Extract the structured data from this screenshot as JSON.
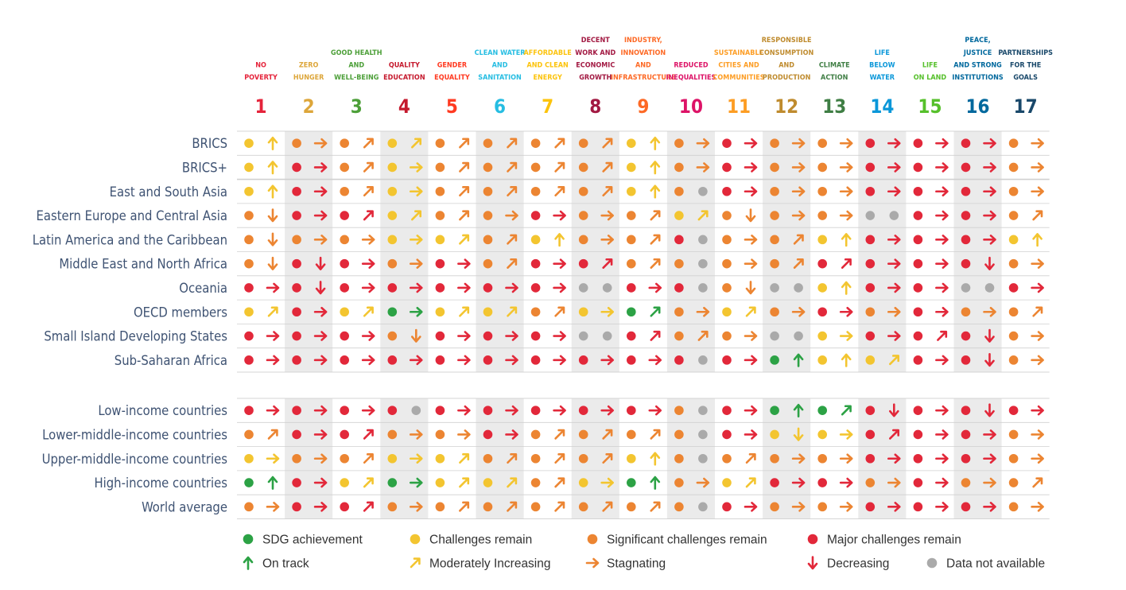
{
  "goals": [
    {
      "number": "1",
      "title": [
        "NO",
        "POVERTY"
      ],
      "color": "#e5243b"
    },
    {
      "number": "2",
      "title": [
        "ZERO",
        "HUNGER"
      ],
      "color": "#dda63a"
    },
    {
      "number": "3",
      "title": [
        "GOOD HEALTH",
        "AND",
        "WELL-BEING"
      ],
      "color": "#4c9f38"
    },
    {
      "number": "4",
      "title": [
        "QUALITY",
        "EDUCATION"
      ],
      "color": "#c5192d"
    },
    {
      "number": "5",
      "title": [
        "GENDER",
        "EQUALITY"
      ],
      "color": "#ff3a21"
    },
    {
      "number": "6",
      "title": [
        "CLEAN WATER",
        "AND",
        "SANITATION"
      ],
      "color": "#26bde2"
    },
    {
      "number": "7",
      "title": [
        "AFFORDABLE",
        "AND CLEAN",
        "ENERGY"
      ],
      "color": "#fcc30b"
    },
    {
      "number": "8",
      "title": [
        "DECENT",
        "WORK AND",
        "ECONOMIC",
        "GROWTH"
      ],
      "color": "#a21942"
    },
    {
      "number": "9",
      "title": [
        "INDUSTRY,",
        "INNOVATION",
        "AND",
        "INFRASTRUCTURE"
      ],
      "color": "#fd6925"
    },
    {
      "number": "10",
      "title": [
        "REDUCED",
        "INEQUALITIES"
      ],
      "color": "#dd1367"
    },
    {
      "number": "11",
      "title": [
        "SUSTAINABLE",
        "CITIES AND",
        "COMMUNITIES"
      ],
      "color": "#fd9d24"
    },
    {
      "number": "12",
      "title": [
        "RESPONSIBLE",
        "CONSUMPTION",
        "AND",
        "PRODUCTION"
      ],
      "color": "#bf8b2e"
    },
    {
      "number": "13",
      "title": [
        "CLIMATE",
        "ACTION"
      ],
      "color": "#3f7e44"
    },
    {
      "number": "14",
      "title": [
        "LIFE",
        "BELOW",
        "WATER"
      ],
      "color": "#0a97d9"
    },
    {
      "number": "15",
      "title": [
        "LIFE",
        "ON LAND"
      ],
      "color": "#56c02b"
    },
    {
      "number": "16",
      "title": [
        "PEACE,",
        "JUSTICE",
        "AND STRONG",
        "INSTITUTIONS"
      ],
      "color": "#00689d"
    },
    {
      "number": "17",
      "title": [
        "PARTNERSHIPS",
        "FOR THE",
        "GOALS"
      ],
      "color": "#19486a"
    }
  ],
  "colors": {
    "G": "#2ca245",
    "Y": "#f3c530",
    "O": "#ec8532",
    "R": "#e2283a",
    "N": "#aaaaaa",
    "row_label": "#3f5373",
    "band": "#ebebeb",
    "rule": "#d0d0d0"
  },
  "chart_data": {
    "type": "table",
    "codes": {
      "dot": {
        "G": "SDG achievement",
        "Y": "Challenges remain",
        "O": "Significant challenges remain",
        "R": "Major challenges remain",
        "N": "Data not available"
      },
      "trend": {
        "u": "On track",
        "m": "Moderately Increasing",
        "s": "Stagnating",
        "d": "Decreasing",
        "n": "Data not available"
      }
    },
    "groups": [
      {
        "rows": [
          {
            "label": "BRICS",
            "cells": [
              "Yu",
              "Os",
              "Om",
              "Ym",
              "Om",
              "Om",
              "Om",
              "Om",
              "Yu",
              "Os",
              "Rs",
              "Os",
              "Os",
              "Rs",
              "Rs",
              "Rs",
              "Os"
            ]
          },
          {
            "label": "BRICS+",
            "cells": [
              "Yu",
              "Rs",
              "Om",
              "Ys",
              "Om",
              "Om",
              "Om",
              "Om",
              "Yu",
              "Os",
              "Rs",
              "Os",
              "Os",
              "Rs",
              "Rs",
              "Rs",
              "Os"
            ]
          },
          {
            "label": "East and South Asia",
            "cells": [
              "Yu",
              "Rs",
              "Om",
              "Ys",
              "Om",
              "Om",
              "Om",
              "Om",
              "Yu",
              "ON",
              "Rs",
              "Os",
              "Os",
              "Rs",
              "Rs",
              "Rs",
              "Os"
            ]
          },
          {
            "label": "Eastern Europe and Central Asia",
            "cells": [
              "Od",
              "Rs",
              "Rm",
              "Ym",
              "Om",
              "Os",
              "Rs",
              "Os",
              "Om",
              "Ym",
              "Od",
              "Os",
              "Os",
              "NN",
              "Rs",
              "Rs",
              "Om"
            ]
          },
          {
            "label": "Latin America and the Caribbean",
            "cells": [
              "Od",
              "Os",
              "Os",
              "Ys",
              "Ym",
              "Om",
              "Yu",
              "Os",
              "Om",
              "RN",
              "Os",
              "Om",
              "Yu",
              "Rs",
              "Rs",
              "Rs",
              "Yu"
            ]
          },
          {
            "label": "Middle East and North Africa",
            "cells": [
              "Od",
              "Rd",
              "Rs",
              "Os",
              "Rs",
              "Om",
              "Rs",
              "Rm",
              "Om",
              "ON",
              "Os",
              "Om",
              "Rm",
              "Rs",
              "Rs",
              "Rd",
              "Os"
            ]
          },
          {
            "label": "Oceania",
            "cells": [
              "Rs",
              "Rd",
              "Rs",
              "Rs",
              "Rs",
              "Rs",
              "Rs",
              "NN",
              "Rs",
              "RN",
              "Od",
              "NN",
              "Yu",
              "Rs",
              "Rs",
              "NN",
              "Rs"
            ]
          },
          {
            "label": "OECD members",
            "cells": [
              "Ym",
              "Rs",
              "Ym",
              "Gs",
              "Ym",
              "Ym",
              "Om",
              "Ys",
              "Gm",
              "Os",
              "Ym",
              "Os",
              "Rs",
              "Os",
              "Rs",
              "Os",
              "Om"
            ]
          },
          {
            "label": "Small Island Developing States",
            "cells": [
              "Rs",
              "Rs",
              "Rs",
              "Od",
              "Rs",
              "Rs",
              "Rs",
              "NN",
              "Rm",
              "Om",
              "Os",
              "NN",
              "Ys",
              "Rs",
              "Rm",
              "Rd",
              "Os"
            ]
          },
          {
            "label": "Sub-Saharan Africa",
            "cells": [
              "Rs",
              "Rs",
              "Rs",
              "Rs",
              "Rs",
              "Rs",
              "Rs",
              "Rs",
              "Rs",
              "RN",
              "Rs",
              "Gu",
              "Yu",
              "Ym",
              "Rs",
              "Rd",
              "Os"
            ]
          }
        ]
      },
      {
        "rows": [
          {
            "label": "Low-income countries",
            "cells": [
              "Rs",
              "Rs",
              "Rs",
              "RN",
              "Rs",
              "Rs",
              "Rs",
              "Rs",
              "Rs",
              "ON",
              "Rs",
              "Gu",
              "Gm",
              "Rd",
              "Rs",
              "Rd",
              "Rs"
            ]
          },
          {
            "label": "Lower-middle-income countries",
            "cells": [
              "Om",
              "Rs",
              "Rm",
              "Os",
              "Os",
              "Rs",
              "Om",
              "Om",
              "Om",
              "ON",
              "Rs",
              "Yd",
              "Ys",
              "Rm",
              "Rs",
              "Rs",
              "Os"
            ]
          },
          {
            "label": "Upper-middle-income countries",
            "cells": [
              "Ys",
              "Os",
              "Om",
              "Ys",
              "Ym",
              "Om",
              "Om",
              "Om",
              "Yu",
              "ON",
              "Om",
              "Os",
              "Os",
              "Rs",
              "Rs",
              "Rs",
              "Os"
            ]
          },
          {
            "label": "High-income countries",
            "cells": [
              "Gu",
              "Rs",
              "Ym",
              "Gs",
              "Ym",
              "Ym",
              "Om",
              "Ys",
              "Gu",
              "Os",
              "Ym",
              "Rs",
              "Rs",
              "Os",
              "Rs",
              "Os",
              "Om"
            ]
          },
          {
            "label": "World average",
            "cells": [
              "Os",
              "Rs",
              "Rm",
              "Os",
              "Om",
              "Om",
              "Om",
              "Om",
              "Om",
              "ON",
              "Rs",
              "Os",
              "Os",
              "Rs",
              "Rs",
              "Rs",
              "Os"
            ]
          }
        ]
      }
    ]
  },
  "legend": [
    {
      "kind": "dot",
      "code": "G",
      "label": "SDG achievement"
    },
    {
      "kind": "dot",
      "code": "Y",
      "label": "Challenges remain"
    },
    {
      "kind": "dot",
      "code": "O",
      "label": "Significant challenges remain"
    },
    {
      "kind": "dot",
      "code": "R",
      "label": "Major challenges remain"
    },
    {
      "kind": "trend",
      "code": "u",
      "label": "On track"
    },
    {
      "kind": "trend",
      "code": "m",
      "label": "Moderately Increasing"
    },
    {
      "kind": "trend",
      "code": "s",
      "label": "Stagnating"
    },
    {
      "kind": "trend",
      "code": "d",
      "label": "Decreasing"
    },
    {
      "kind": "dot",
      "code": "N",
      "label": "Data not available"
    }
  ]
}
